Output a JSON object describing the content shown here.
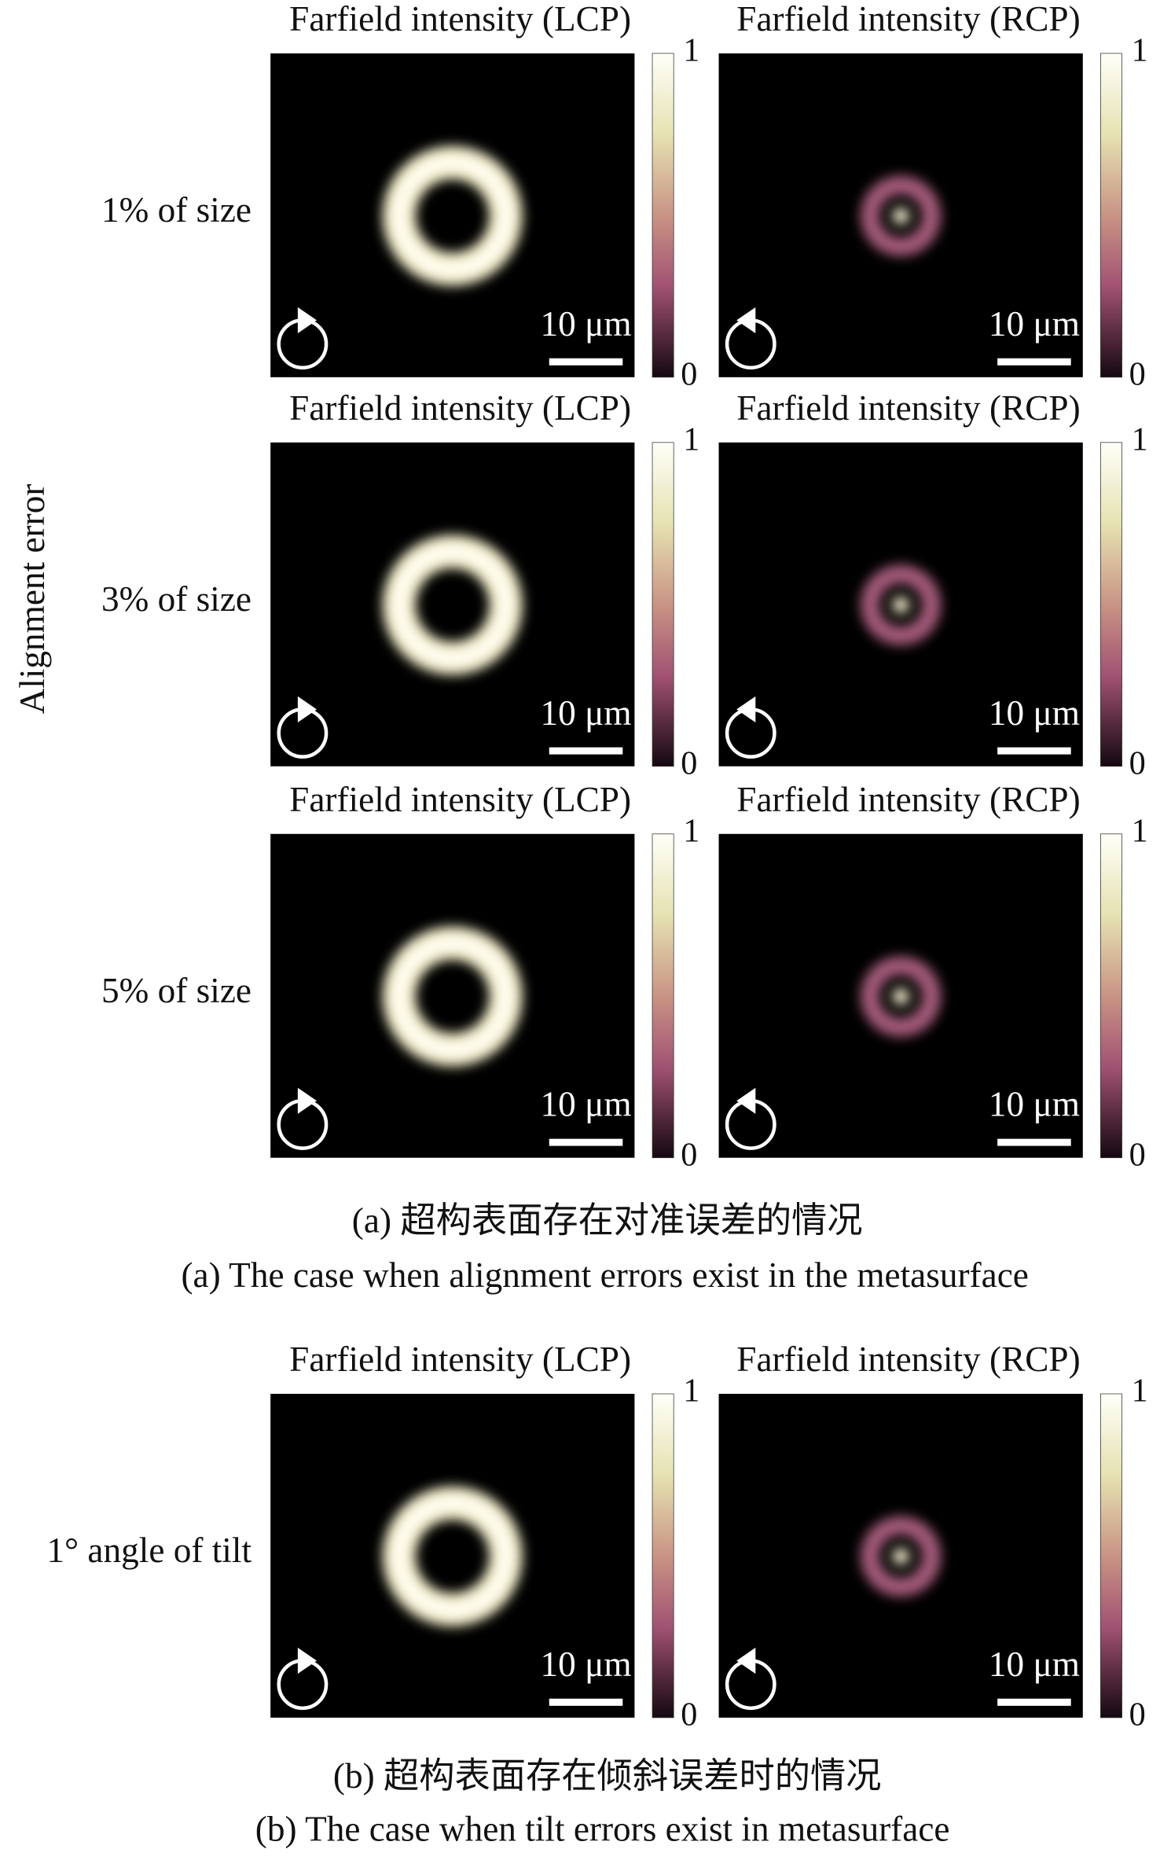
{
  "part_a": {
    "y_label": "Alignment error",
    "rows": [
      {
        "label": "1% of size",
        "panels": [
          {
            "title": "Farfield intensity (LCP)",
            "scale_bar": "10 μm",
            "colorbar_max": 1,
            "colorbar_min": 0
          },
          {
            "title": "Farfield intensity (RCP)",
            "scale_bar": "10 μm",
            "colorbar_max": 1,
            "colorbar_min": 0
          }
        ]
      },
      {
        "label": "3% of size",
        "panels": [
          {
            "title": "Farfield intensity (LCP)",
            "scale_bar": "10 μm",
            "colorbar_max": 1,
            "colorbar_min": 0
          },
          {
            "title": "Farfield intensity (RCP)",
            "scale_bar": "10 μm",
            "colorbar_max": 1,
            "colorbar_min": 0
          }
        ]
      },
      {
        "label": "5% of size",
        "panels": [
          {
            "title": "Farfield intensity (LCP)",
            "scale_bar": "10 μm",
            "colorbar_max": 1,
            "colorbar_min": 0
          },
          {
            "title": "Farfield intensity (RCP)",
            "scale_bar": "10 μm",
            "colorbar_max": 1,
            "colorbar_min": 0
          }
        ]
      }
    ],
    "caption_zh": "(a) 超构表面存在对准误差的情况",
    "caption_en": "(a) The case when alignment errors exist in the metasurface"
  },
  "part_b": {
    "rows": [
      {
        "label": "1° angle of tilt",
        "panels": [
          {
            "title": "Farfield intensity (LCP)",
            "scale_bar": "10 μm",
            "colorbar_max": 1,
            "colorbar_min": 0
          },
          {
            "title": "Farfield intensity (RCP)",
            "scale_bar": "10 μm",
            "colorbar_max": 1,
            "colorbar_min": 0
          }
        ]
      }
    ],
    "caption_zh": "(b) 超构表面存在倾斜误差时的情况",
    "caption_en": "(b) The case when tilt errors exist in metasurface"
  }
}
